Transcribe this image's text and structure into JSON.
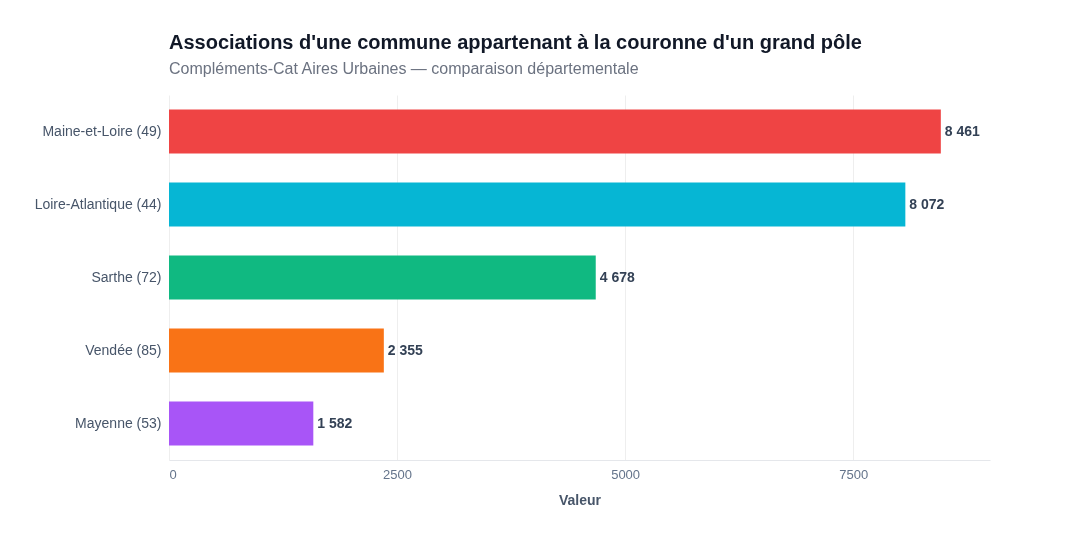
{
  "chart_data": {
    "type": "bar",
    "orientation": "horizontal",
    "title": "Associations d'une commune appartenant à la couronne d'un grand pôle",
    "subtitle": "Compléments-Cat Aires Urbaines — comparaison départementale",
    "xlabel": "Valeur",
    "categories": [
      "Maine-et-Loire (49)",
      "Loire-Atlantique (44)",
      "Sarthe (72)",
      "Vendée (85)",
      "Mayenne (53)"
    ],
    "values": [
      8461,
      8072,
      4678,
      2355,
      1582
    ],
    "colors": [
      "#ef4444",
      "#06b6d4",
      "#10b981",
      "#f97316",
      "#a855f7"
    ],
    "value_labels": [
      "8 461",
      "8 072",
      "4 678",
      "2 355",
      "1 582"
    ],
    "xlim": [
      0,
      9000
    ],
    "xticks": [
      0,
      2500,
      5000,
      7500
    ],
    "grid": "x"
  }
}
